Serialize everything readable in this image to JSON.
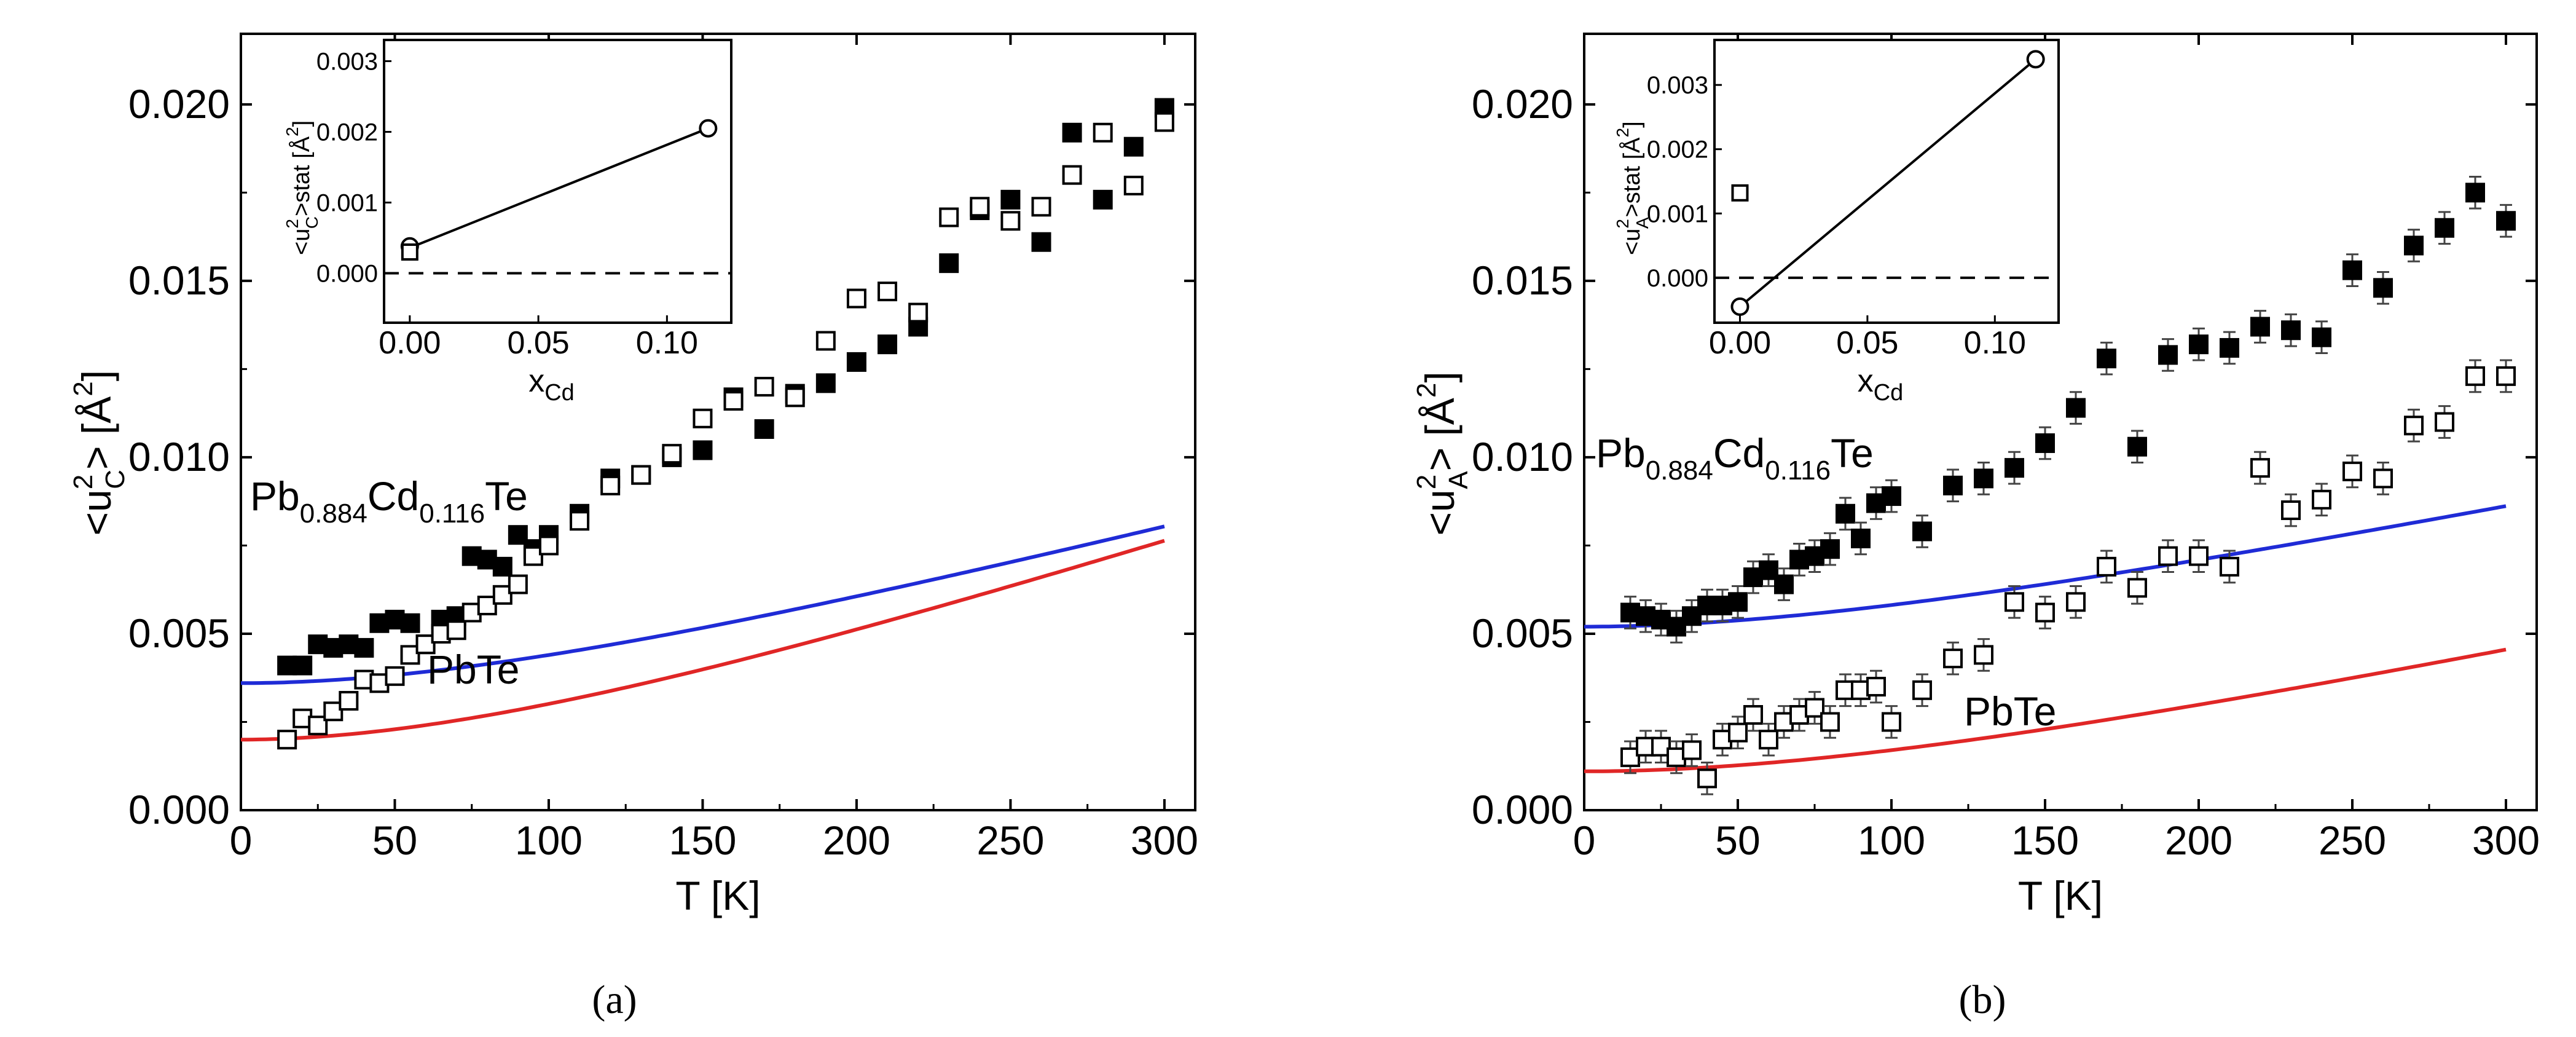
{
  "captions": {
    "a": "(a)",
    "b": "(b)"
  },
  "chart_data": [
    {
      "id": "a",
      "type": "scatter",
      "xlabel": "T [K]",
      "ylabel": "<u_C^2> [Å^2]",
      "ylabel_parts": {
        "pre": "<u",
        "sup": "2",
        "sub": "C",
        "mid": "> [Å",
        "sup2": "2",
        "post": "]"
      },
      "xlim": [
        0,
        310
      ],
      "ylim": [
        0,
        0.022
      ],
      "xticks": [
        "0",
        "50",
        "100",
        "150",
        "200",
        "250",
        "300"
      ],
      "yticks": [
        "0.000",
        "0.005",
        "0.010",
        "0.015",
        "0.020"
      ],
      "annotations": {
        "cd": {
          "base": "Pb",
          "s1": "0.884",
          "mid": "Cd",
          "s2": "0.116",
          "end": "Te"
        },
        "pbte": "PbTe"
      },
      "series": [
        {
          "name": "Pb0.884Cd0.116Te",
          "marker": "filled-square",
          "errorbars": false,
          "x": [
            15,
            20,
            25,
            30,
            35,
            40,
            45,
            50,
            55,
            60,
            65,
            70,
            75,
            80,
            85,
            90,
            95,
            100,
            110,
            120,
            130,
            140,
            150,
            160,
            170,
            180,
            190,
            200,
            210,
            220,
            230,
            240,
            250,
            260,
            270,
            280,
            290,
            300
          ],
          "y": [
            0.0041,
            0.0041,
            0.0047,
            0.0046,
            0.0047,
            0.0046,
            0.0053,
            0.0054,
            0.0053,
            0.0047,
            0.0054,
            0.0055,
            0.0072,
            0.0071,
            0.0069,
            0.0078,
            0.0074,
            0.0078,
            0.0084,
            0.0094,
            0.0095,
            0.01,
            0.0102,
            0.0117,
            0.0108,
            0.0118,
            0.0121,
            0.0127,
            0.0132,
            0.0137,
            0.0155,
            0.017,
            0.0173,
            0.0161,
            0.0192,
            0.0173,
            0.0188,
            0.0199
          ]
        },
        {
          "name": "PbTe",
          "marker": "open-square",
          "errorbars": false,
          "x": [
            15,
            20,
            25,
            30,
            35,
            40,
            45,
            50,
            55,
            60,
            65,
            70,
            75,
            80,
            85,
            90,
            95,
            100,
            110,
            120,
            130,
            140,
            150,
            160,
            170,
            180,
            190,
            200,
            210,
            220,
            230,
            240,
            250,
            260,
            270,
            280,
            290,
            300
          ],
          "y": [
            0.002,
            0.0026,
            0.0024,
            0.0028,
            0.0031,
            0.0037,
            0.0036,
            0.0038,
            0.0044,
            0.0047,
            0.005,
            0.0051,
            0.0056,
            0.0058,
            0.0061,
            0.0064,
            0.0072,
            0.0075,
            0.0082,
            0.0092,
            0.0095,
            0.0101,
            0.0111,
            0.0116,
            0.012,
            0.0117,
            0.0133,
            0.0145,
            0.0147,
            0.0141,
            0.0168,
            0.0171,
            0.0167,
            0.0171,
            0.018,
            0.0192,
            0.0177,
            0.0195
          ]
        }
      ],
      "fits": [
        {
          "name": "fit Pb0.884Cd0.116Te",
          "color": "#1f2bd6",
          "a": 0.0036,
          "b": 2.167e-05,
          "c": 0.0025,
          "th": 100
        },
        {
          "name": "fit PbTe",
          "color": "#e02626",
          "a": 0.002,
          "b": 2.75e-05,
          "c": 0.0032,
          "th": 100
        }
      ],
      "inset": {
        "xlabel": {
          "base": "x",
          "sub": "Cd"
        },
        "ylabel": {
          "pre": "<u",
          "sup": "2",
          "sub": "C",
          "post": ">stat [Å",
          "sup2": "2",
          "end": "]"
        },
        "xlim": [
          -0.01,
          0.125
        ],
        "ylim": [
          -0.0007,
          0.0033
        ],
        "xticks": [
          "0.00",
          "0.05",
          "0.10"
        ],
        "yticks": [
          "0.000",
          "0.001",
          "0.002",
          "0.003"
        ],
        "line": {
          "x": [
            0.0,
            0.116
          ],
          "y": [
            0.00036,
            0.00205
          ]
        },
        "points": [
          {
            "x": 0.0,
            "y": 0.00038,
            "marker": "open-circle"
          },
          {
            "x": 0.116,
            "y": 0.00205,
            "marker": "open-circle"
          },
          {
            "x": 0.0,
            "y": 0.0003,
            "marker": "open-square"
          }
        ]
      }
    },
    {
      "id": "b",
      "type": "scatter",
      "xlabel": "T [K]",
      "ylabel": "<u_A^2> [Å^2]",
      "ylabel_parts": {
        "pre": "<u",
        "sup": "2",
        "sub": "A",
        "mid": "> [Å",
        "sup2": "2",
        "post": "]"
      },
      "xlim": [
        0,
        310
      ],
      "ylim": [
        0,
        0.022
      ],
      "xticks": [
        "0",
        "50",
        "100",
        "150",
        "200",
        "250",
        "300"
      ],
      "yticks": [
        "0.000",
        "0.005",
        "0.010",
        "0.015",
        "0.020"
      ],
      "annotations": {
        "cd": {
          "base": "Pb",
          "s1": "0.884",
          "mid": "Cd",
          "s2": "0.116",
          "end": "Te"
        },
        "pbte": "PbTe"
      },
      "series": [
        {
          "name": "Pb0.884Cd0.116Te",
          "marker": "filled-square",
          "errorbars": true,
          "x": [
            15,
            20,
            25,
            30,
            35,
            40,
            45,
            50,
            55,
            60,
            65,
            70,
            75,
            80,
            85,
            90,
            95,
            100,
            110,
            120,
            130,
            140,
            150,
            160,
            170,
            180,
            190,
            200,
            210,
            220,
            230,
            240,
            250,
            260,
            270,
            280,
            290,
            300
          ],
          "y": [
            0.0056,
            0.0055,
            0.0054,
            0.0052,
            0.0055,
            0.0058,
            0.0058,
            0.0059,
            0.0066,
            0.0068,
            0.0064,
            0.0071,
            0.0072,
            0.0074,
            0.0084,
            0.0077,
            0.0087,
            0.0089,
            0.0079,
            0.0092,
            0.0094,
            0.0097,
            0.0104,
            0.0114,
            0.0128,
            0.0103,
            0.0129,
            0.0132,
            0.0131,
            0.0137,
            0.0136,
            0.0134,
            0.0153,
            0.0148,
            0.016,
            0.0165,
            0.0175,
            0.0167
          ]
        },
        {
          "name": "PbTe",
          "marker": "open-square",
          "errorbars": true,
          "x": [
            15,
            20,
            25,
            30,
            35,
            40,
            45,
            50,
            55,
            60,
            65,
            70,
            75,
            80,
            85,
            90,
            95,
            100,
            110,
            120,
            130,
            140,
            150,
            160,
            170,
            180,
            190,
            200,
            210,
            220,
            230,
            240,
            250,
            260,
            270,
            280,
            290,
            300
          ],
          "y": [
            0.0015,
            0.0018,
            0.0018,
            0.0015,
            0.0017,
            0.0009,
            0.002,
            0.0022,
            0.0027,
            0.002,
            0.0025,
            0.0027,
            0.0029,
            0.0025,
            0.0034,
            0.0034,
            0.0035,
            0.0025,
            0.0034,
            0.0043,
            0.0044,
            0.0059,
            0.0056,
            0.0059,
            0.0069,
            0.0063,
            0.0072,
            0.0072,
            0.0069,
            0.0097,
            0.0085,
            0.0088,
            0.0096,
            0.0094,
            0.0109,
            0.011,
            0.0123,
            0.0123
          ]
        }
      ],
      "fits": [
        {
          "name": "fit Pb0.884Cd0.116Te",
          "color": "#1f2bd6",
          "a": 0.0052,
          "b": 1.667e-05,
          "c": 0.002,
          "th": 100
        },
        {
          "name": "fit PbTe",
          "color": "#e02626",
          "a": 0.0011,
          "b": 1.75e-05,
          "c": 0.0018,
          "th": 110
        }
      ],
      "inset": {
        "xlabel": {
          "base": "x",
          "sub": "Cd"
        },
        "ylabel": {
          "pre": "<u",
          "sup": "2",
          "sub": "A",
          "post": ">stat [Å",
          "sup2": "2",
          "end": "]"
        },
        "xlim": [
          -0.01,
          0.125
        ],
        "ylim": [
          -0.0007,
          0.0037
        ],
        "xticks": [
          "0.00",
          "0.05",
          "0.10"
        ],
        "yticks": [
          "0.000",
          "0.001",
          "0.002",
          "0.003"
        ],
        "line": {
          "x": [
            0.0,
            0.116
          ],
          "y": [
            -0.00045,
            0.0034
          ]
        },
        "points": [
          {
            "x": 0.0,
            "y": -0.00045,
            "marker": "open-circle"
          },
          {
            "x": 0.116,
            "y": 0.0034,
            "marker": "open-circle"
          },
          {
            "x": 0.0,
            "y": 0.00132,
            "marker": "open-square"
          }
        ]
      }
    }
  ]
}
